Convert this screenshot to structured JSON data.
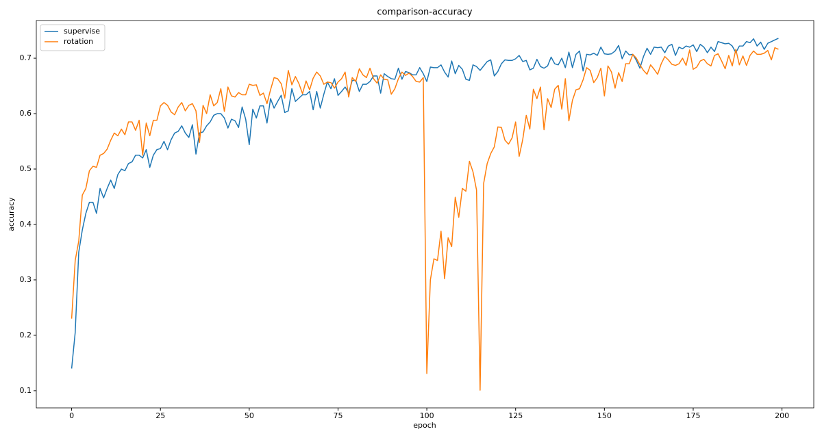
{
  "chart_data": {
    "type": "line",
    "title": "comparison-accuracy",
    "x_label": "epoch",
    "y_label": "accuracy",
    "x": [
      0,
      1,
      2,
      3,
      4,
      5,
      6,
      7,
      8,
      9,
      10,
      11,
      12,
      13,
      14,
      15,
      16,
      17,
      18,
      19,
      20,
      21,
      22,
      23,
      24,
      25,
      26,
      27,
      28,
      29,
      30,
      31,
      32,
      33,
      34,
      35,
      36,
      37,
      38,
      39,
      40,
      41,
      42,
      43,
      44,
      45,
      46,
      47,
      48,
      49,
      50,
      51,
      52,
      53,
      54,
      55,
      56,
      57,
      58,
      59,
      60,
      61,
      62,
      63,
      64,
      65,
      66,
      67,
      68,
      69,
      70,
      71,
      72,
      73,
      74,
      75,
      76,
      77,
      78,
      79,
      80,
      81,
      82,
      83,
      84,
      85,
      86,
      87,
      88,
      89,
      90,
      91,
      92,
      93,
      94,
      95,
      96,
      97,
      98,
      99,
      100,
      101,
      102,
      103,
      104,
      105,
      106,
      107,
      108,
      109,
      110,
      111,
      112,
      113,
      114,
      115,
      116,
      117,
      118,
      119,
      120,
      121,
      122,
      123,
      124,
      125,
      126,
      127,
      128,
      129,
      130,
      131,
      132,
      133,
      134,
      135,
      136,
      137,
      138,
      139,
      140,
      141,
      142,
      143,
      144,
      145,
      146,
      147,
      148,
      149,
      150,
      151,
      152,
      153,
      154,
      155,
      156,
      157,
      158,
      159,
      160,
      161,
      162,
      163,
      164,
      165,
      166,
      167,
      168,
      169,
      170,
      171,
      172,
      173,
      174,
      175,
      176,
      177,
      178,
      179,
      180,
      181,
      182,
      183,
      184,
      185,
      186,
      187,
      188,
      189,
      190,
      191,
      192,
      193,
      194,
      195,
      196,
      197,
      198,
      199
    ],
    "series": [
      {
        "name": "supervise",
        "color": "#1f77b4",
        "values": [
          0.14,
          0.205,
          0.35,
          0.39,
          0.42,
          0.44,
          0.44,
          0.42,
          0.465,
          0.448,
          0.465,
          0.48,
          0.465,
          0.49,
          0.5,
          0.497,
          0.51,
          0.513,
          0.525,
          0.525,
          0.52,
          0.535,
          0.503,
          0.525,
          0.535,
          0.537,
          0.55,
          0.535,
          0.553,
          0.565,
          0.568,
          0.578,
          0.565,
          0.557,
          0.58,
          0.527,
          0.565,
          0.567,
          0.578,
          0.585,
          0.597,
          0.6,
          0.6,
          0.592,
          0.574,
          0.59,
          0.587,
          0.575,
          0.612,
          0.59,
          0.544,
          0.608,
          0.592,
          0.614,
          0.614,
          0.583,
          0.627,
          0.61,
          0.622,
          0.633,
          0.602,
          0.605,
          0.645,
          0.622,
          0.628,
          0.634,
          0.634,
          0.64,
          0.607,
          0.64,
          0.61,
          0.635,
          0.657,
          0.645,
          0.663,
          0.633,
          0.64,
          0.648,
          0.637,
          0.66,
          0.66,
          0.64,
          0.653,
          0.653,
          0.658,
          0.668,
          0.668,
          0.637,
          0.672,
          0.667,
          0.663,
          0.662,
          0.682,
          0.662,
          0.676,
          0.674,
          0.67,
          0.67,
          0.683,
          0.672,
          0.658,
          0.684,
          0.683,
          0.683,
          0.688,
          0.675,
          0.666,
          0.695,
          0.672,
          0.687,
          0.68,
          0.662,
          0.66,
          0.688,
          0.685,
          0.678,
          0.686,
          0.694,
          0.697,
          0.668,
          0.676,
          0.69,
          0.697,
          0.696,
          0.696,
          0.699,
          0.705,
          0.694,
          0.696,
          0.679,
          0.682,
          0.698,
          0.685,
          0.682,
          0.686,
          0.702,
          0.69,
          0.688,
          0.7,
          0.683,
          0.711,
          0.683,
          0.707,
          0.713,
          0.677,
          0.707,
          0.706,
          0.709,
          0.705,
          0.72,
          0.708,
          0.707,
          0.708,
          0.713,
          0.723,
          0.699,
          0.713,
          0.706,
          0.707,
          0.696,
          0.682,
          0.703,
          0.718,
          0.707,
          0.72,
          0.719,
          0.72,
          0.71,
          0.722,
          0.725,
          0.705,
          0.72,
          0.717,
          0.722,
          0.72,
          0.724,
          0.712,
          0.725,
          0.72,
          0.71,
          0.72,
          0.712,
          0.73,
          0.728,
          0.726,
          0.727,
          0.722,
          0.71,
          0.722,
          0.722,
          0.73,
          0.728,
          0.735,
          0.722,
          0.729,
          0.716,
          0.727,
          0.73,
          0.733,
          0.736
        ]
      },
      {
        "name": "rotation",
        "color": "#ff7f0e",
        "values": [
          0.23,
          0.335,
          0.37,
          0.453,
          0.465,
          0.497,
          0.505,
          0.503,
          0.525,
          0.528,
          0.536,
          0.552,
          0.565,
          0.56,
          0.572,
          0.562,
          0.585,
          0.585,
          0.57,
          0.588,
          0.525,
          0.583,
          0.56,
          0.588,
          0.588,
          0.614,
          0.62,
          0.615,
          0.603,
          0.598,
          0.612,
          0.62,
          0.605,
          0.615,
          0.618,
          0.605,
          0.548,
          0.615,
          0.6,
          0.634,
          0.614,
          0.62,
          0.645,
          0.604,
          0.648,
          0.632,
          0.63,
          0.638,
          0.634,
          0.634,
          0.653,
          0.651,
          0.652,
          0.633,
          0.637,
          0.618,
          0.643,
          0.665,
          0.663,
          0.654,
          0.628,
          0.678,
          0.652,
          0.667,
          0.654,
          0.636,
          0.659,
          0.643,
          0.664,
          0.675,
          0.668,
          0.653,
          0.657,
          0.656,
          0.646,
          0.657,
          0.663,
          0.675,
          0.63,
          0.665,
          0.658,
          0.681,
          0.67,
          0.665,
          0.682,
          0.663,
          0.655,
          0.67,
          0.662,
          0.661,
          0.635,
          0.645,
          0.663,
          0.675,
          0.669,
          0.673,
          0.667,
          0.658,
          0.657,
          0.665,
          0.131,
          0.3,
          0.338,
          0.335,
          0.388,
          0.302,
          0.376,
          0.36,
          0.449,
          0.413,
          0.465,
          0.46,
          0.514,
          0.495,
          0.462,
          0.101,
          0.474,
          0.51,
          0.528,
          0.54,
          0.576,
          0.575,
          0.552,
          0.545,
          0.556,
          0.585,
          0.523,
          0.553,
          0.597,
          0.572,
          0.644,
          0.627,
          0.648,
          0.571,
          0.627,
          0.611,
          0.644,
          0.651,
          0.608,
          0.663,
          0.587,
          0.624,
          0.643,
          0.645,
          0.661,
          0.683,
          0.678,
          0.656,
          0.665,
          0.682,
          0.632,
          0.686,
          0.675,
          0.646,
          0.674,
          0.658,
          0.69,
          0.69,
          0.707,
          0.7,
          0.688,
          0.678,
          0.671,
          0.688,
          0.68,
          0.671,
          0.69,
          0.703,
          0.697,
          0.689,
          0.687,
          0.69,
          0.7,
          0.687,
          0.715,
          0.68,
          0.684,
          0.695,
          0.698,
          0.69,
          0.686,
          0.705,
          0.708,
          0.695,
          0.681,
          0.705,
          0.686,
          0.716,
          0.688,
          0.704,
          0.687,
          0.705,
          0.713,
          0.707,
          0.707,
          0.709,
          0.714,
          0.697,
          0.719,
          0.716
        ]
      }
    ],
    "xlim": [
      -9.95,
      208.95
    ],
    "ylim": [
      0.069,
      0.768
    ],
    "xticks": [
      0,
      25,
      50,
      75,
      100,
      125,
      150,
      175,
      200
    ],
    "yticks": [
      0.1,
      0.2,
      0.3,
      0.4,
      0.5,
      0.6,
      0.7
    ],
    "legend": "upper left",
    "grid": false
  }
}
